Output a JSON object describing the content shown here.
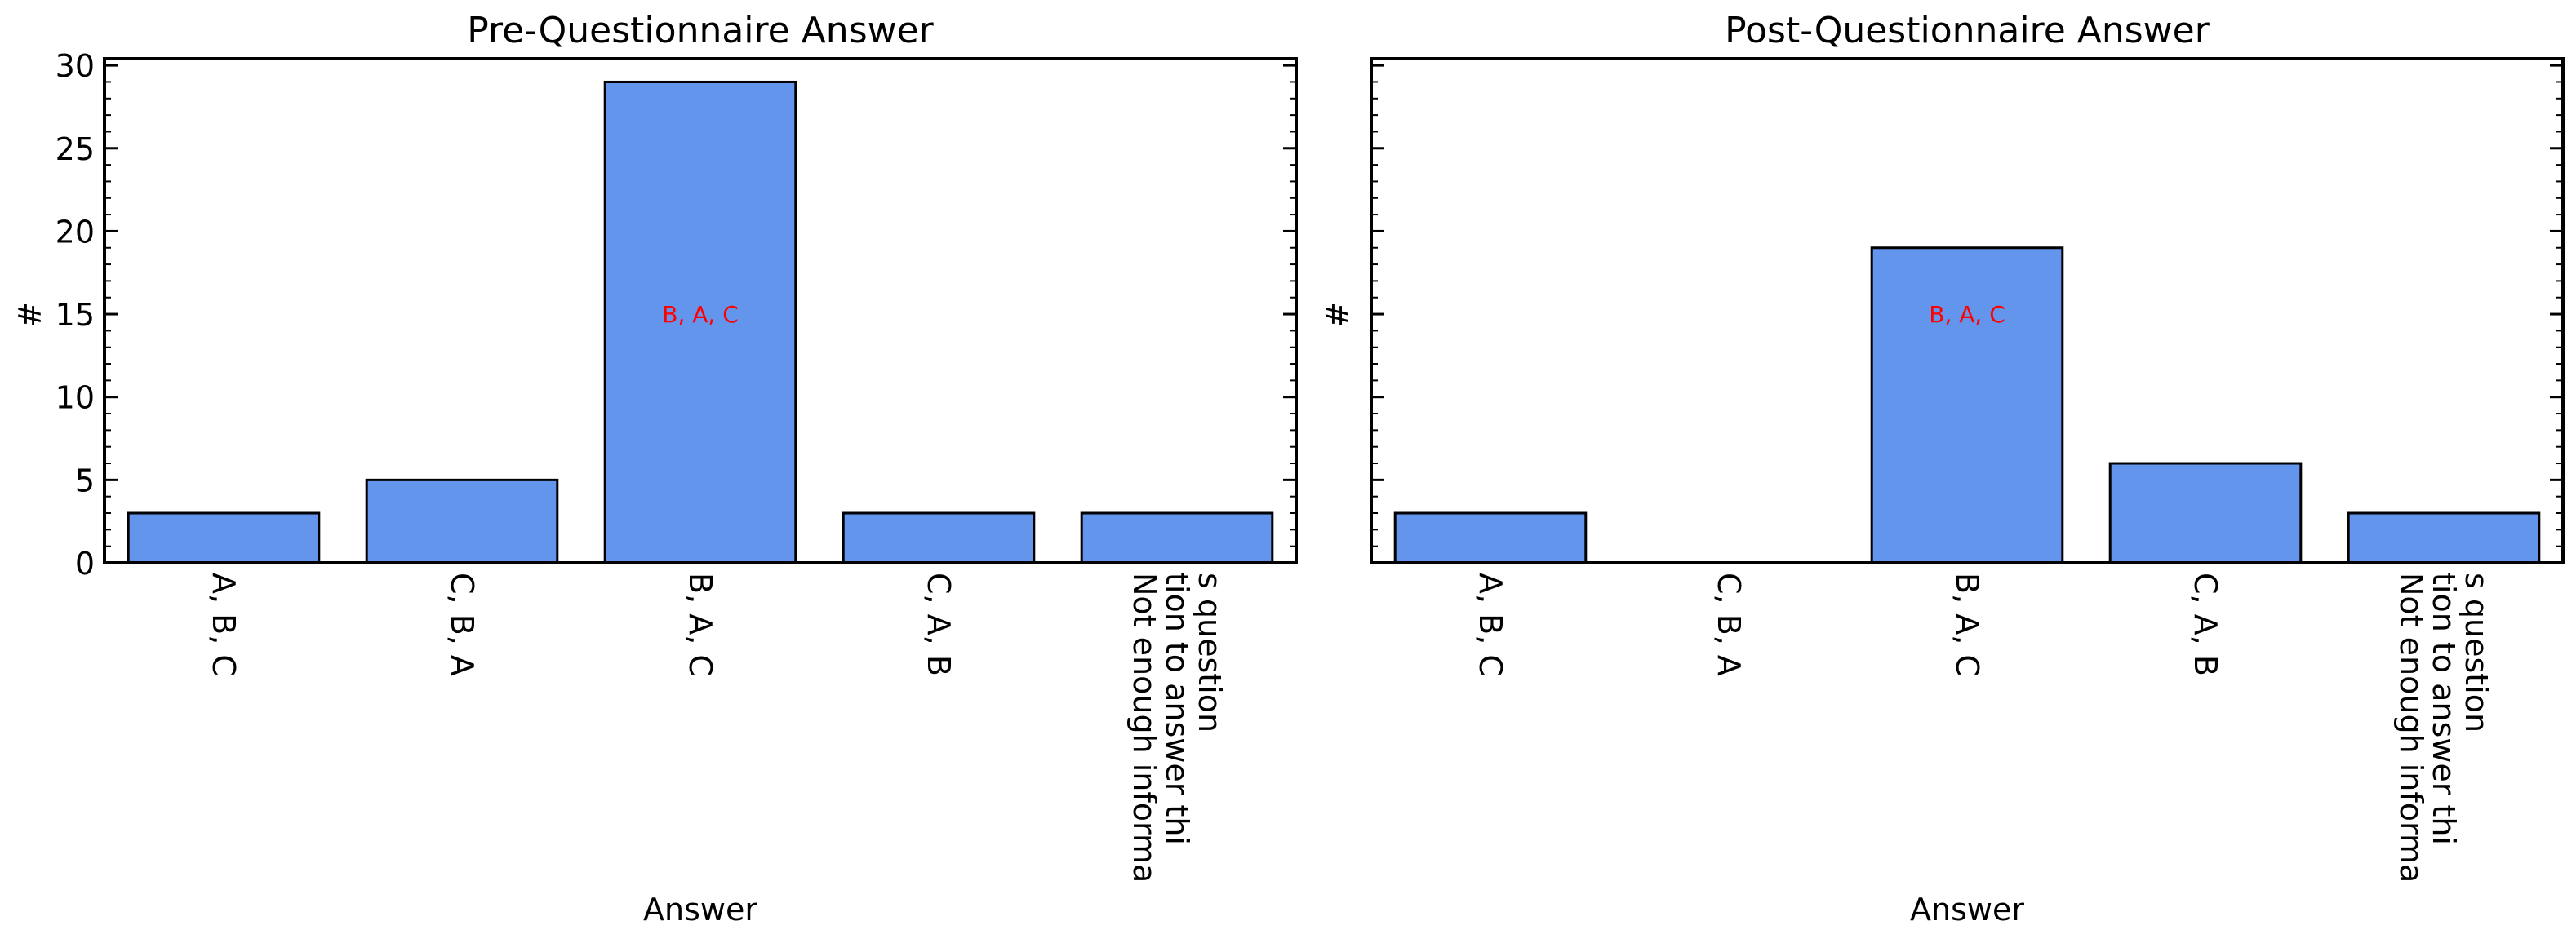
{
  "chart_data": [
    {
      "type": "bar",
      "title": "Pre-Questionnaire Answer",
      "xlabel": "Answer",
      "ylabel": "#",
      "categories": [
        "A, B, C",
        "C, B, A",
        "B, A, C",
        "C, A, B",
        "Not enough informa\ntion to answer thi\ns question"
      ],
      "values": [
        3,
        5,
        29,
        3,
        3
      ],
      "ylim": [
        0,
        30.4
      ],
      "yticks": [
        0,
        5,
        10,
        15,
        20,
        25,
        30
      ],
      "bar_color": "#6495ED",
      "annotation": {
        "text": "B, A, C",
        "category": "B, A, C",
        "y": 15,
        "color": "#ff0000"
      }
    },
    {
      "type": "bar",
      "title": "Post-Questionnaire Answer",
      "xlabel": "Answer",
      "ylabel": "#",
      "categories": [
        "A, B, C",
        "C, B, A",
        "B, A, C",
        "C, A, B",
        "Not enough informa\ntion to answer thi\ns question"
      ],
      "values": [
        3,
        0,
        19,
        6,
        3
      ],
      "ylim": [
        0,
        30.4
      ],
      "yticks": [
        0,
        5,
        10,
        15,
        20,
        25,
        30
      ],
      "show_ytick_labels": false,
      "bar_color": "#6495ED",
      "annotation": {
        "text": "B, A, C",
        "category": "B, A, C",
        "y": 15,
        "color": "#ff0000"
      }
    }
  ]
}
